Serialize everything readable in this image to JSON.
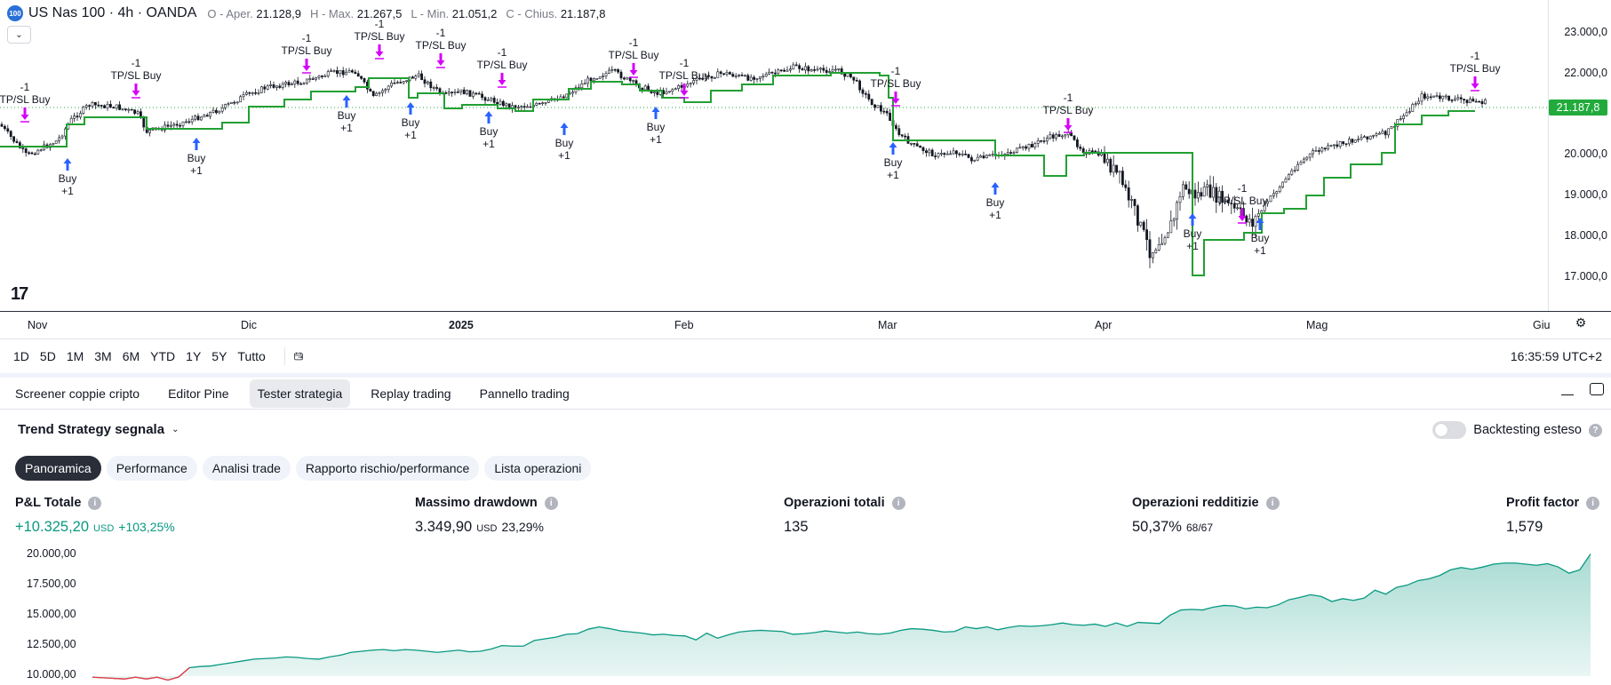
{
  "symbol": {
    "badge": "100",
    "title": "US Nas 100 · 4h · OANDA",
    "ohlc": [
      {
        "k": "O - Aper.",
        "v": "21.128,9"
      },
      {
        "k": "H - Max.",
        "v": "21.267,5"
      },
      {
        "k": "L - Min.",
        "v": "21.051,2"
      },
      {
        "k": "C - Chius.",
        "v": "21.187,8"
      }
    ]
  },
  "chart": {
    "logo": "17",
    "price_ticks": [
      "23.000,0",
      "22.000,0",
      "20.000,0",
      "19.000,0",
      "18.000,0",
      "17.000,0"
    ],
    "last_price": "21.187,8",
    "time_ticks": [
      "Nov",
      "Dic",
      "2025",
      "Feb",
      "Mar",
      "Apr",
      "Mag",
      "Giu"
    ],
    "signals": {
      "buy_text": "Buy",
      "buy_qty": "+1",
      "exit_text": "TP/SL Buy",
      "exit_qty": "-1"
    },
    "colors": {
      "stop_line": "#22a033",
      "buy_arrow": "#2962ff",
      "exit_arrow": "#d500f9",
      "last_price_line": "#22ab3c"
    }
  },
  "range_bar": {
    "ranges": [
      "1D",
      "5D",
      "1M",
      "3M",
      "6M",
      "YTD",
      "1Y",
      "5Y",
      "Tutto"
    ],
    "clock": "16:35:59 UTC+2"
  },
  "panel": {
    "tabs": [
      "Screener coppie cripto",
      "Editor Pine",
      "Tester strategia",
      "Replay trading",
      "Pannello trading"
    ],
    "active_tab": "Tester strategia",
    "strategy_name": "Trend Strategy segnala",
    "backtest_label": "Backtesting esteso",
    "sub_tabs": [
      "Panoramica",
      "Performance",
      "Analisi trade",
      "Rapporto rischio/performance",
      "Lista operazioni"
    ],
    "stats": {
      "pnl": {
        "label": "P&L Totale",
        "value": "+10.325,20",
        "currency": "USD",
        "pct": "+103,25%"
      },
      "drawdown": {
        "label": "Massimo drawdown",
        "value": "3.349,90",
        "currency": "USD",
        "pct": "23,29%"
      },
      "trades": {
        "label": "Operazioni totali",
        "value": "135"
      },
      "profitable": {
        "label": "Operazioni redditizie",
        "value": "50,37%",
        "ratio": "68/67"
      },
      "profit_factor": {
        "label": "Profit factor",
        "value": "1,579"
      }
    },
    "equity_ticks": [
      "20.000,00",
      "17.500,00",
      "15.000,00",
      "12.500,00",
      "10.000,00"
    ]
  },
  "chart_data": {
    "type": "line",
    "ylim": [
      10000,
      21000
    ],
    "series": [
      {
        "values": [
          9900,
          9850,
          9800,
          9750,
          9900,
          9750,
          9900,
          9650,
          9920,
          10750,
          10850,
          10900,
          11050,
          11200,
          11350,
          11500,
          11550,
          11600,
          11700,
          11650,
          11550,
          11500,
          11700,
          11850,
          12100,
          12200,
          12300,
          12350,
          12250,
          12350,
          12300,
          12200,
          12100,
          12200,
          12300,
          12150,
          12200,
          12400,
          12700,
          12650,
          12650,
          13150,
          13300,
          13450,
          13700,
          13750,
          14150,
          14350,
          14200,
          14000,
          13900,
          13800,
          13650,
          13700,
          13600,
          13550,
          13200,
          13800,
          13350,
          13650,
          13900,
          14000,
          14050,
          14000,
          13950,
          13700,
          13750,
          13850,
          14000,
          13900,
          13800,
          13900,
          13750,
          13700,
          13800,
          14050,
          14200,
          14150,
          14050,
          13900,
          13950,
          14350,
          14200,
          14350,
          14100,
          14300,
          14450,
          14400,
          14450,
          14550,
          14700,
          14550,
          14500,
          14600,
          14400,
          14700,
          14400,
          14750,
          14700,
          14650,
          15400,
          15850,
          15900,
          15850,
          16100,
          16250,
          16200,
          15950,
          16100,
          16050,
          16300,
          16750,
          16950,
          17200,
          17050,
          16600,
          16850,
          16700,
          16900,
          17600,
          17250,
          17850,
          18050,
          18450,
          18600,
          18900,
          19400,
          19600,
          19450,
          19650,
          19900,
          20000,
          20000,
          19900,
          19800,
          19950,
          19650,
          19100,
          19400,
          20800
        ]
      }
    ]
  }
}
